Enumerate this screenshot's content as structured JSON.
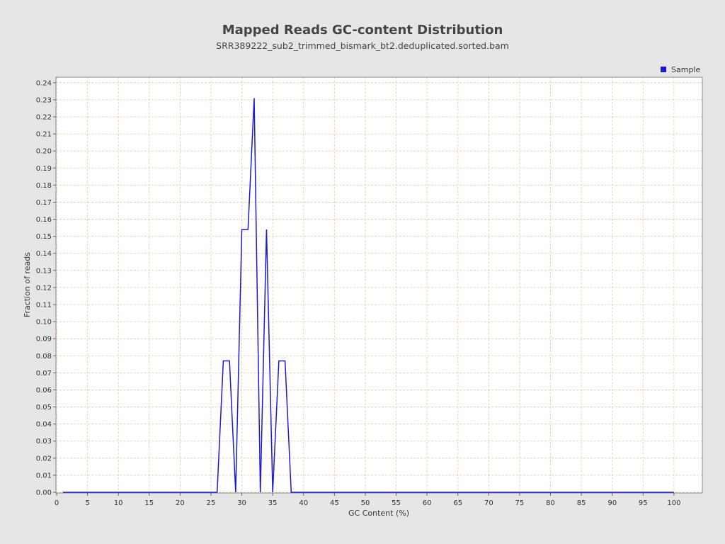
{
  "chart_data": {
    "type": "line",
    "title": "Mapped Reads GC-content Distribution",
    "subtitle": "SRR389222_sub2_trimmed_bismark_bt2.deduplicated.sorted.bam",
    "xlabel": "GC Content (%)",
    "ylabel": "Fraction of reads",
    "xlim": [
      0,
      104.6
    ],
    "ylim": [
      0,
      0.242
    ],
    "xticks": [
      0,
      5,
      10,
      15,
      20,
      25,
      30,
      35,
      40,
      45,
      50,
      55,
      60,
      65,
      70,
      75,
      80,
      85,
      90,
      95,
      100
    ],
    "yticks": [
      0.0,
      0.01,
      0.02,
      0.03,
      0.04,
      0.05,
      0.06,
      0.07,
      0.08,
      0.09,
      0.1,
      0.11,
      0.12,
      0.13,
      0.14,
      0.15,
      0.16,
      0.17,
      0.18,
      0.19,
      0.2,
      0.21,
      0.22,
      0.23,
      0.24
    ],
    "xtick_labels": [
      "0",
      "5",
      "10",
      "15",
      "20",
      "25",
      "30",
      "35",
      "40",
      "45",
      "50",
      "55",
      "60",
      "65",
      "70",
      "75",
      "80",
      "85",
      "90",
      "95",
      "100"
    ],
    "ytick_labels": [
      "0.00",
      "0.01",
      "0.02",
      "0.03",
      "0.04",
      "0.05",
      "0.06",
      "0.07",
      "0.08",
      "0.09",
      "0.10",
      "0.11",
      "0.12",
      "0.13",
      "0.14",
      "0.15",
      "0.16",
      "0.17",
      "0.18",
      "0.19",
      "0.20",
      "0.21",
      "0.22",
      "0.23",
      "0.24"
    ],
    "grid": true,
    "legend_position": "top-right",
    "series": [
      {
        "name": "Sample",
        "color": "#1a1ad6",
        "points": [
          [
            1,
            0
          ],
          [
            26,
            0
          ],
          [
            27,
            0.077
          ],
          [
            28,
            0.077
          ],
          [
            29,
            0
          ],
          [
            30,
            0.154
          ],
          [
            31,
            0.154
          ],
          [
            32,
            0.231
          ],
          [
            33,
            0
          ],
          [
            34,
            0.154
          ],
          [
            35,
            0
          ],
          [
            36,
            0.077
          ],
          [
            37,
            0.077
          ],
          [
            38,
            0
          ],
          [
            100,
            0
          ]
        ]
      }
    ]
  },
  "colors": {
    "background": "#e6e6e6",
    "plot_background": "#ffffff",
    "grid": "#f0c6a8",
    "series": "#1a1ad6"
  }
}
